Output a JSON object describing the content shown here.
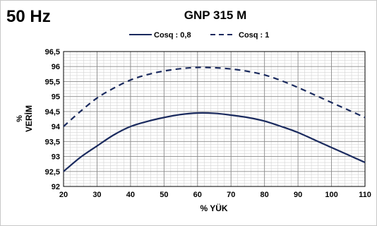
{
  "chart_data": {
    "type": "line",
    "corner_label": "50 Hz",
    "title": "GNP 315 M",
    "xlabel": "% YÜK",
    "ylabel_unit": "%",
    "ylabel": "VERİM",
    "xlim": [
      20,
      110
    ],
    "ylim": [
      92,
      96.5
    ],
    "x_ticks": [
      20,
      30,
      40,
      50,
      60,
      70,
      80,
      90,
      100,
      110
    ],
    "x_tick_labels": [
      "20",
      "30",
      "40",
      "50",
      "60",
      "70",
      "80",
      "90",
      "100",
      "110"
    ],
    "y_ticks": [
      92,
      92.5,
      93,
      93.5,
      94,
      94.5,
      95,
      95.5,
      96,
      96.5
    ],
    "y_tick_labels": [
      "92",
      "92,5",
      "93",
      "93,5",
      "94",
      "94,5",
      "95",
      "95,5",
      "96",
      "96,5"
    ],
    "grid": true,
    "legend_position": "top-center",
    "series": [
      {
        "name": "Cosq : 0,8",
        "style": "solid",
        "color": "#1a2a5e",
        "x": [
          20,
          25,
          30,
          35,
          40,
          45,
          50,
          55,
          60,
          65,
          70,
          75,
          80,
          85,
          90,
          95,
          100,
          105,
          110
        ],
        "y": [
          92.5,
          92.97,
          93.35,
          93.72,
          94.0,
          94.17,
          94.3,
          94.4,
          94.45,
          94.44,
          94.38,
          94.3,
          94.18,
          94.0,
          93.8,
          93.55,
          93.3,
          93.05,
          92.8
        ]
      },
      {
        "name": "Cosq : 1",
        "style": "dashed",
        "color": "#1a2a5e",
        "x": [
          20,
          25,
          30,
          35,
          40,
          45,
          50,
          55,
          60,
          65,
          70,
          75,
          80,
          85,
          90,
          95,
          100,
          105,
          110
        ],
        "y": [
          94.0,
          94.5,
          94.95,
          95.28,
          95.55,
          95.73,
          95.85,
          95.93,
          95.97,
          95.96,
          95.92,
          95.84,
          95.72,
          95.53,
          95.3,
          95.05,
          94.8,
          94.55,
          94.3
        ]
      }
    ]
  }
}
